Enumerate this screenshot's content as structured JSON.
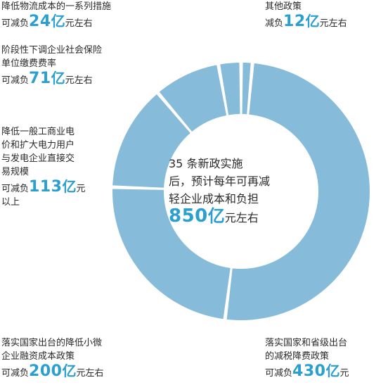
{
  "chart_data": {
    "type": "pie",
    "categories": [
      "其他政策",
      "落实国家和省级出台的减税降费政策",
      "落实国家出台的降低小微企业融资成本政策",
      "降低一般工商业电价和扩大电力用户与发电企业直接交易规模",
      "阶段性下调企业社会保险单位缴费费率",
      "降低物流成本的一系列措施"
    ],
    "values": [
      12,
      430,
      200,
      113,
      71,
      24
    ],
    "colors": [
      "#86bcd9",
      "#86bcd9",
      "#86bcd9",
      "#86bcd9",
      "#86bcd9",
      "#86bcd9"
    ]
  },
  "labels": {
    "logistics": {
      "lines": [
        "降低物流成本的一系列措施"
      ],
      "prefix": "可减负",
      "value": "24",
      "unit": "亿",
      "suffix": "元左右"
    },
    "other": {
      "lines": [
        "其他政策"
      ],
      "prefix": "减负",
      "value": "12",
      "unit": "亿",
      "suffix": "元左右"
    },
    "social": {
      "lines": [
        "阶段性下调企业社会保险",
        "单位缴费费率"
      ],
      "prefix": "可减负",
      "value": "71",
      "unit": "亿",
      "suffix": "元左右"
    },
    "electric": {
      "lines": [
        "降低一般工商业电",
        "价和扩大电力用户",
        "与发电企业直接交",
        "易规模"
      ],
      "prefix": "可减负",
      "value": "113",
      "unit": "亿",
      "suffix": "元",
      "after": "以上"
    },
    "smallbiz": {
      "lines": [
        "落实国家出台的降低小微",
        "企业融资成本政策"
      ],
      "prefix": "可减负",
      "value": "200",
      "unit": "亿",
      "suffix": "元左右"
    },
    "tax": {
      "lines": [
        "落实国家和省级出台",
        "的减税降费政策"
      ],
      "prefix": "可减负",
      "value": "430",
      "unit": "亿",
      "suffix": "元"
    }
  },
  "center": {
    "lines": [
      "35 条新政实施",
      "后，预计每年可再减",
      "轻企业成本和负担"
    ],
    "value": "850",
    "unit": "亿",
    "suffix": "元左右"
  }
}
